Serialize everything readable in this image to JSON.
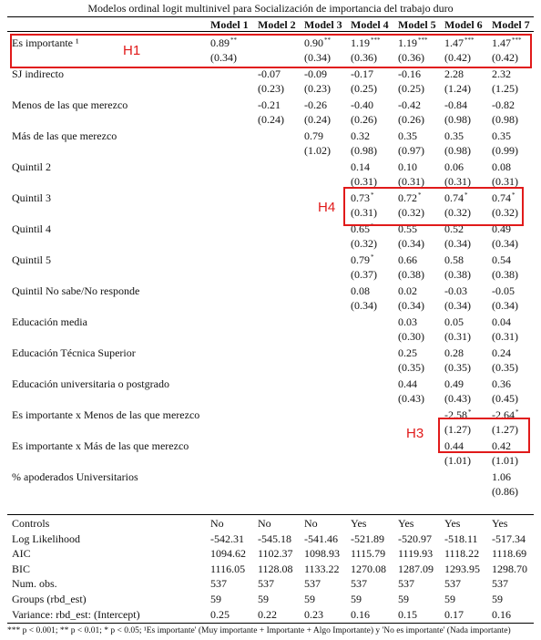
{
  "title": "Modelos ordinal logit multinivel para Socialización de importancia del trabajo duro",
  "columns": [
    "Model 1",
    "Model 2",
    "Model 3",
    "Model 4",
    "Model 5",
    "Model 6",
    "Model 7"
  ],
  "rows": [
    {
      "label": "Es importante ¹",
      "est": [
        "0.89",
        "",
        "0.90",
        "1.19",
        "1.19",
        "1.47",
        "1.47"
      ],
      "sig": [
        "**",
        "",
        "**",
        "***",
        "***",
        "***",
        "***"
      ],
      "se": [
        "(0.34)",
        "",
        "(0.34)",
        "(0.36)",
        "(0.36)",
        "(0.42)",
        "(0.42)"
      ]
    },
    {
      "label": "SJ indirecto",
      "est": [
        "",
        "-0.07",
        "-0.09",
        "-0.17",
        "-0.16",
        "2.28",
        "2.32"
      ],
      "sig": [
        "",
        "",
        "",
        "",
        "",
        "",
        ""
      ],
      "se": [
        "",
        "(0.23)",
        "(0.23)",
        "(0.25)",
        "(0.25)",
        "(1.24)",
        "(1.25)"
      ]
    },
    {
      "label": "Menos de las que merezco",
      "est": [
        "",
        "-0.21",
        "-0.26",
        "-0.40",
        "-0.42",
        "-0.84",
        "-0.82"
      ],
      "sig": [
        "",
        "",
        "",
        "",
        "",
        "",
        ""
      ],
      "se": [
        "",
        "(0.24)",
        "(0.24)",
        "(0.26)",
        "(0.26)",
        "(0.98)",
        "(0.98)"
      ]
    },
    {
      "label": "Más de las que merezco",
      "est": [
        "",
        "",
        "0.79",
        "0.32",
        "0.35",
        "0.35",
        "0.35"
      ],
      "sig": [
        "",
        "",
        "",
        "",
        "",
        "",
        ""
      ],
      "se": [
        "",
        "",
        "(1.02)",
        "(0.98)",
        "(0.97)",
        "(0.98)",
        "(0.99)"
      ]
    },
    {
      "label": "Quintil 2",
      "est": [
        "",
        "",
        "",
        "0.14",
        "0.10",
        "0.06",
        "0.08"
      ],
      "sig": [
        "",
        "",
        "",
        "",
        "",
        "",
        ""
      ],
      "se": [
        "",
        "",
        "",
        "(0.31)",
        "(0.31)",
        "(0.31)",
        "(0.31)"
      ]
    },
    {
      "label": "Quintil 3",
      "est": [
        "",
        "",
        "",
        "0.73",
        "0.72",
        "0.74",
        "0.74"
      ],
      "sig": [
        "",
        "",
        "",
        "*",
        "*",
        "*",
        "*"
      ],
      "se": [
        "",
        "",
        "",
        "(0.31)",
        "(0.32)",
        "(0.32)",
        "(0.32)"
      ]
    },
    {
      "label": "Quintil 4",
      "est": [
        "",
        "",
        "",
        "0.65",
        "0.55",
        "0.52",
        "0.49"
      ],
      "sig": [
        "",
        "",
        "",
        "*",
        "",
        "",
        ""
      ],
      "se": [
        "",
        "",
        "",
        "(0.32)",
        "(0.34)",
        "(0.34)",
        "(0.34)"
      ]
    },
    {
      "label": "Quintil 5",
      "est": [
        "",
        "",
        "",
        "0.79",
        "0.66",
        "0.58",
        "0.54"
      ],
      "sig": [
        "",
        "",
        "",
        "*",
        "",
        "",
        ""
      ],
      "se": [
        "",
        "",
        "",
        "(0.37)",
        "(0.38)",
        "(0.38)",
        "(0.38)"
      ]
    },
    {
      "label": "Quintil No sabe/No responde",
      "est": [
        "",
        "",
        "",
        "0.08",
        "0.02",
        "-0.03",
        "-0.05"
      ],
      "sig": [
        "",
        "",
        "",
        "",
        "",
        "",
        ""
      ],
      "se": [
        "",
        "",
        "",
        "(0.34)",
        "(0.34)",
        "(0.34)",
        "(0.34)"
      ]
    },
    {
      "label": "Educación media",
      "est": [
        "",
        "",
        "",
        "",
        "0.03",
        "0.05",
        "0.04"
      ],
      "sig": [
        "",
        "",
        "",
        "",
        "",
        "",
        ""
      ],
      "se": [
        "",
        "",
        "",
        "",
        "(0.30)",
        "(0.31)",
        "(0.31)"
      ]
    },
    {
      "label": "Educación Técnica Superior",
      "est": [
        "",
        "",
        "",
        "",
        "0.25",
        "0.28",
        "0.24"
      ],
      "sig": [
        "",
        "",
        "",
        "",
        "",
        "",
        ""
      ],
      "se": [
        "",
        "",
        "",
        "",
        "(0.35)",
        "(0.35)",
        "(0.35)"
      ]
    },
    {
      "label": "Educación universitaria o postgrado",
      "est": [
        "",
        "",
        "",
        "",
        "0.44",
        "0.49",
        "0.36"
      ],
      "sig": [
        "",
        "",
        "",
        "",
        "",
        "",
        ""
      ],
      "se": [
        "",
        "",
        "",
        "",
        "(0.43)",
        "(0.43)",
        "(0.45)"
      ]
    },
    {
      "label": "Es importante x Menos de las que merezco",
      "est": [
        "",
        "",
        "",
        "",
        "",
        "-2.58",
        "-2.64"
      ],
      "sig": [
        "",
        "",
        "",
        "",
        "",
        "*",
        "*"
      ],
      "se": [
        "",
        "",
        "",
        "",
        "",
        "(1.27)",
        "(1.27)"
      ]
    },
    {
      "label": "Es importante x Más de las que merezco",
      "est": [
        "",
        "",
        "",
        "",
        "",
        "0.44",
        "0.42"
      ],
      "sig": [
        "",
        "",
        "",
        "",
        "",
        "",
        ""
      ],
      "se": [
        "",
        "",
        "",
        "",
        "",
        "(1.01)",
        "(1.01)"
      ]
    },
    {
      "label": "% apoderados Universitarios",
      "est": [
        "",
        "",
        "",
        "",
        "",
        "",
        "1.06"
      ],
      "sig": [
        "",
        "",
        "",
        "",
        "",
        "",
        ""
      ],
      "se": [
        "",
        "",
        "",
        "",
        "",
        "",
        "(0.86)"
      ]
    }
  ],
  "stats": [
    {
      "label": "Controls",
      "values": [
        "No",
        "No",
        "No",
        "Yes",
        "Yes",
        "Yes",
        "Yes"
      ]
    },
    {
      "label": "Log Likelihood",
      "values": [
        "-542.31",
        "-545.18",
        "-541.46",
        "-521.89",
        "-520.97",
        "-518.11",
        "-517.34"
      ]
    },
    {
      "label": "AIC",
      "values": [
        "1094.62",
        "1102.37",
        "1098.93",
        "1115.79",
        "1119.93",
        "1118.22",
        "1118.69"
      ]
    },
    {
      "label": "BIC",
      "values": [
        "1116.05",
        "1128.08",
        "1133.22",
        "1270.08",
        "1287.09",
        "1293.95",
        "1298.70"
      ]
    },
    {
      "label": "Num. obs.",
      "values": [
        "537",
        "537",
        "537",
        "537",
        "537",
        "537",
        "537"
      ]
    },
    {
      "label": "Groups (rbd_est)",
      "values": [
        "59",
        "59",
        "59",
        "59",
        "59",
        "59",
        "59"
      ]
    },
    {
      "label": "Variance: rbd_est: (Intercept)",
      "values": [
        "0.25",
        "0.22",
        "0.23",
        "0.16",
        "0.15",
        "0.17",
        "0.16"
      ]
    }
  ],
  "footnote": "*** p < 0.001; ** p < 0.01; * p < 0.05; ¹Es importante' (Muy importante + Importante + Algo Importante) y 'No es importante' (Nada importante)",
  "annotations": [
    {
      "label": "H1",
      "color": "#e11a1a"
    },
    {
      "label": "H4",
      "color": "#e11a1a"
    },
    {
      "label": "H3",
      "color": "#e11a1a"
    }
  ]
}
